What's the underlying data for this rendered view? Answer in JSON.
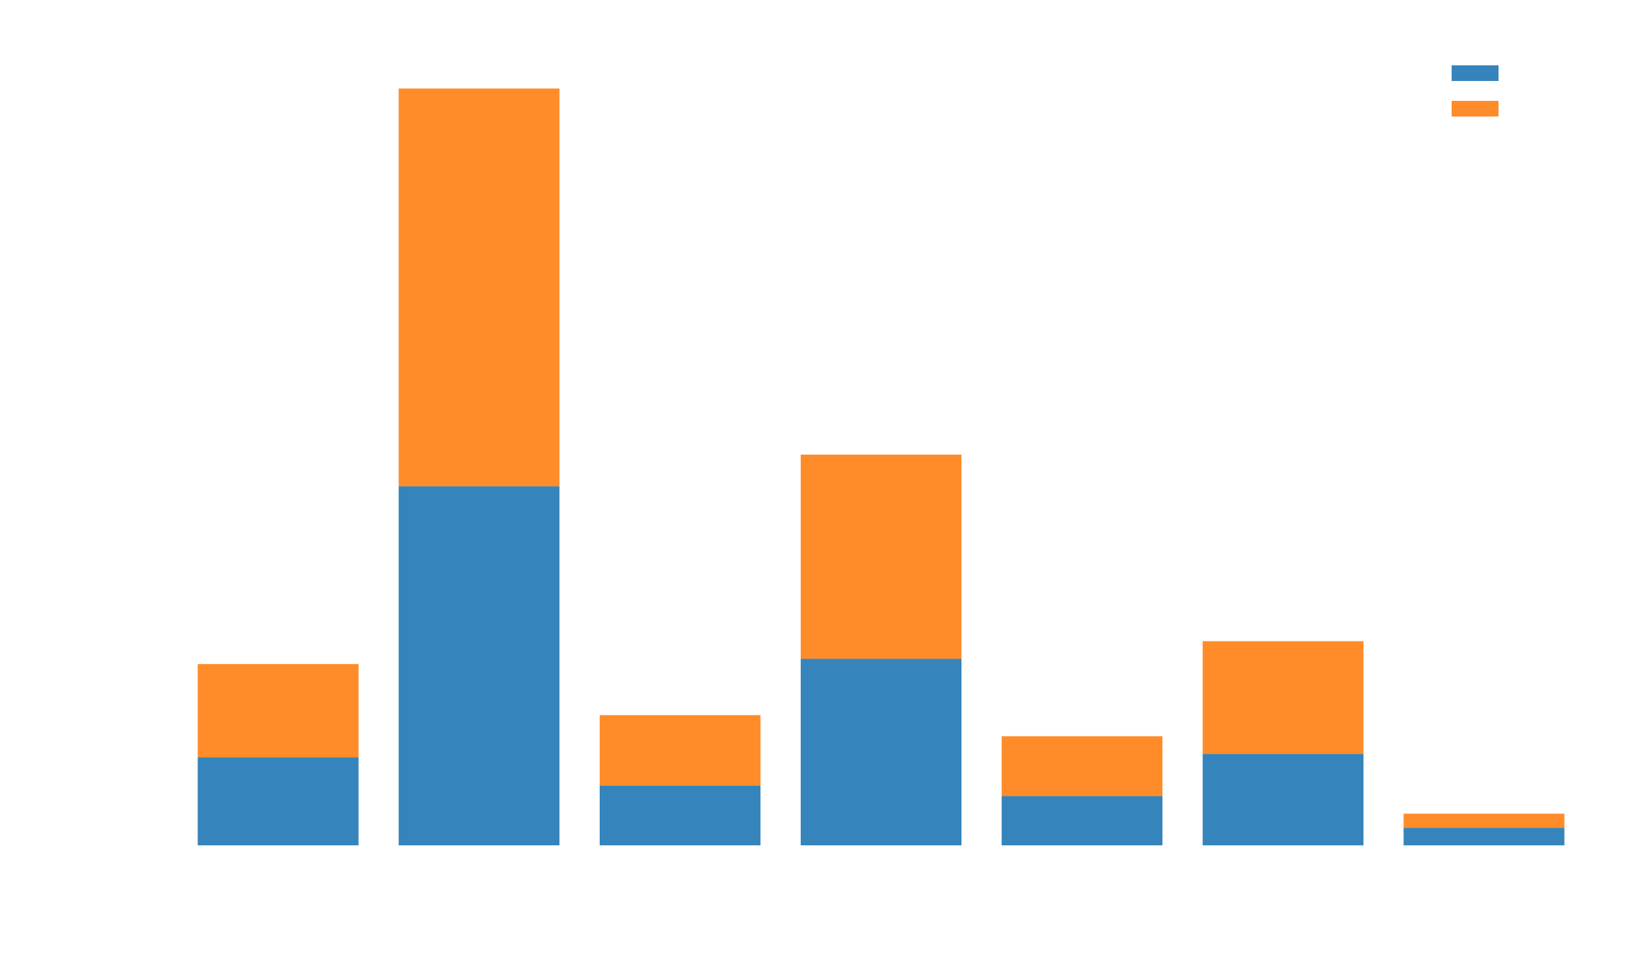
{
  "chart_data": {
    "type": "bar",
    "stacked": true,
    "categories": [
      "",
      "",
      "",
      "",
      "",
      "",
      ""
    ],
    "series": [
      {
        "values": [
          25,
          102,
          17,
          53,
          14,
          26,
          5
        ],
        "color": "#3584bb"
      },
      {
        "values": [
          26.5,
          113,
          20,
          58,
          17,
          32,
          4
        ],
        "color": "#ff8c29"
      }
    ],
    "ylim": [
      0,
      223
    ],
    "grid": false,
    "legend": {
      "position": "top-right"
    },
    "title": "",
    "xlabel": "",
    "ylabel": ""
  }
}
